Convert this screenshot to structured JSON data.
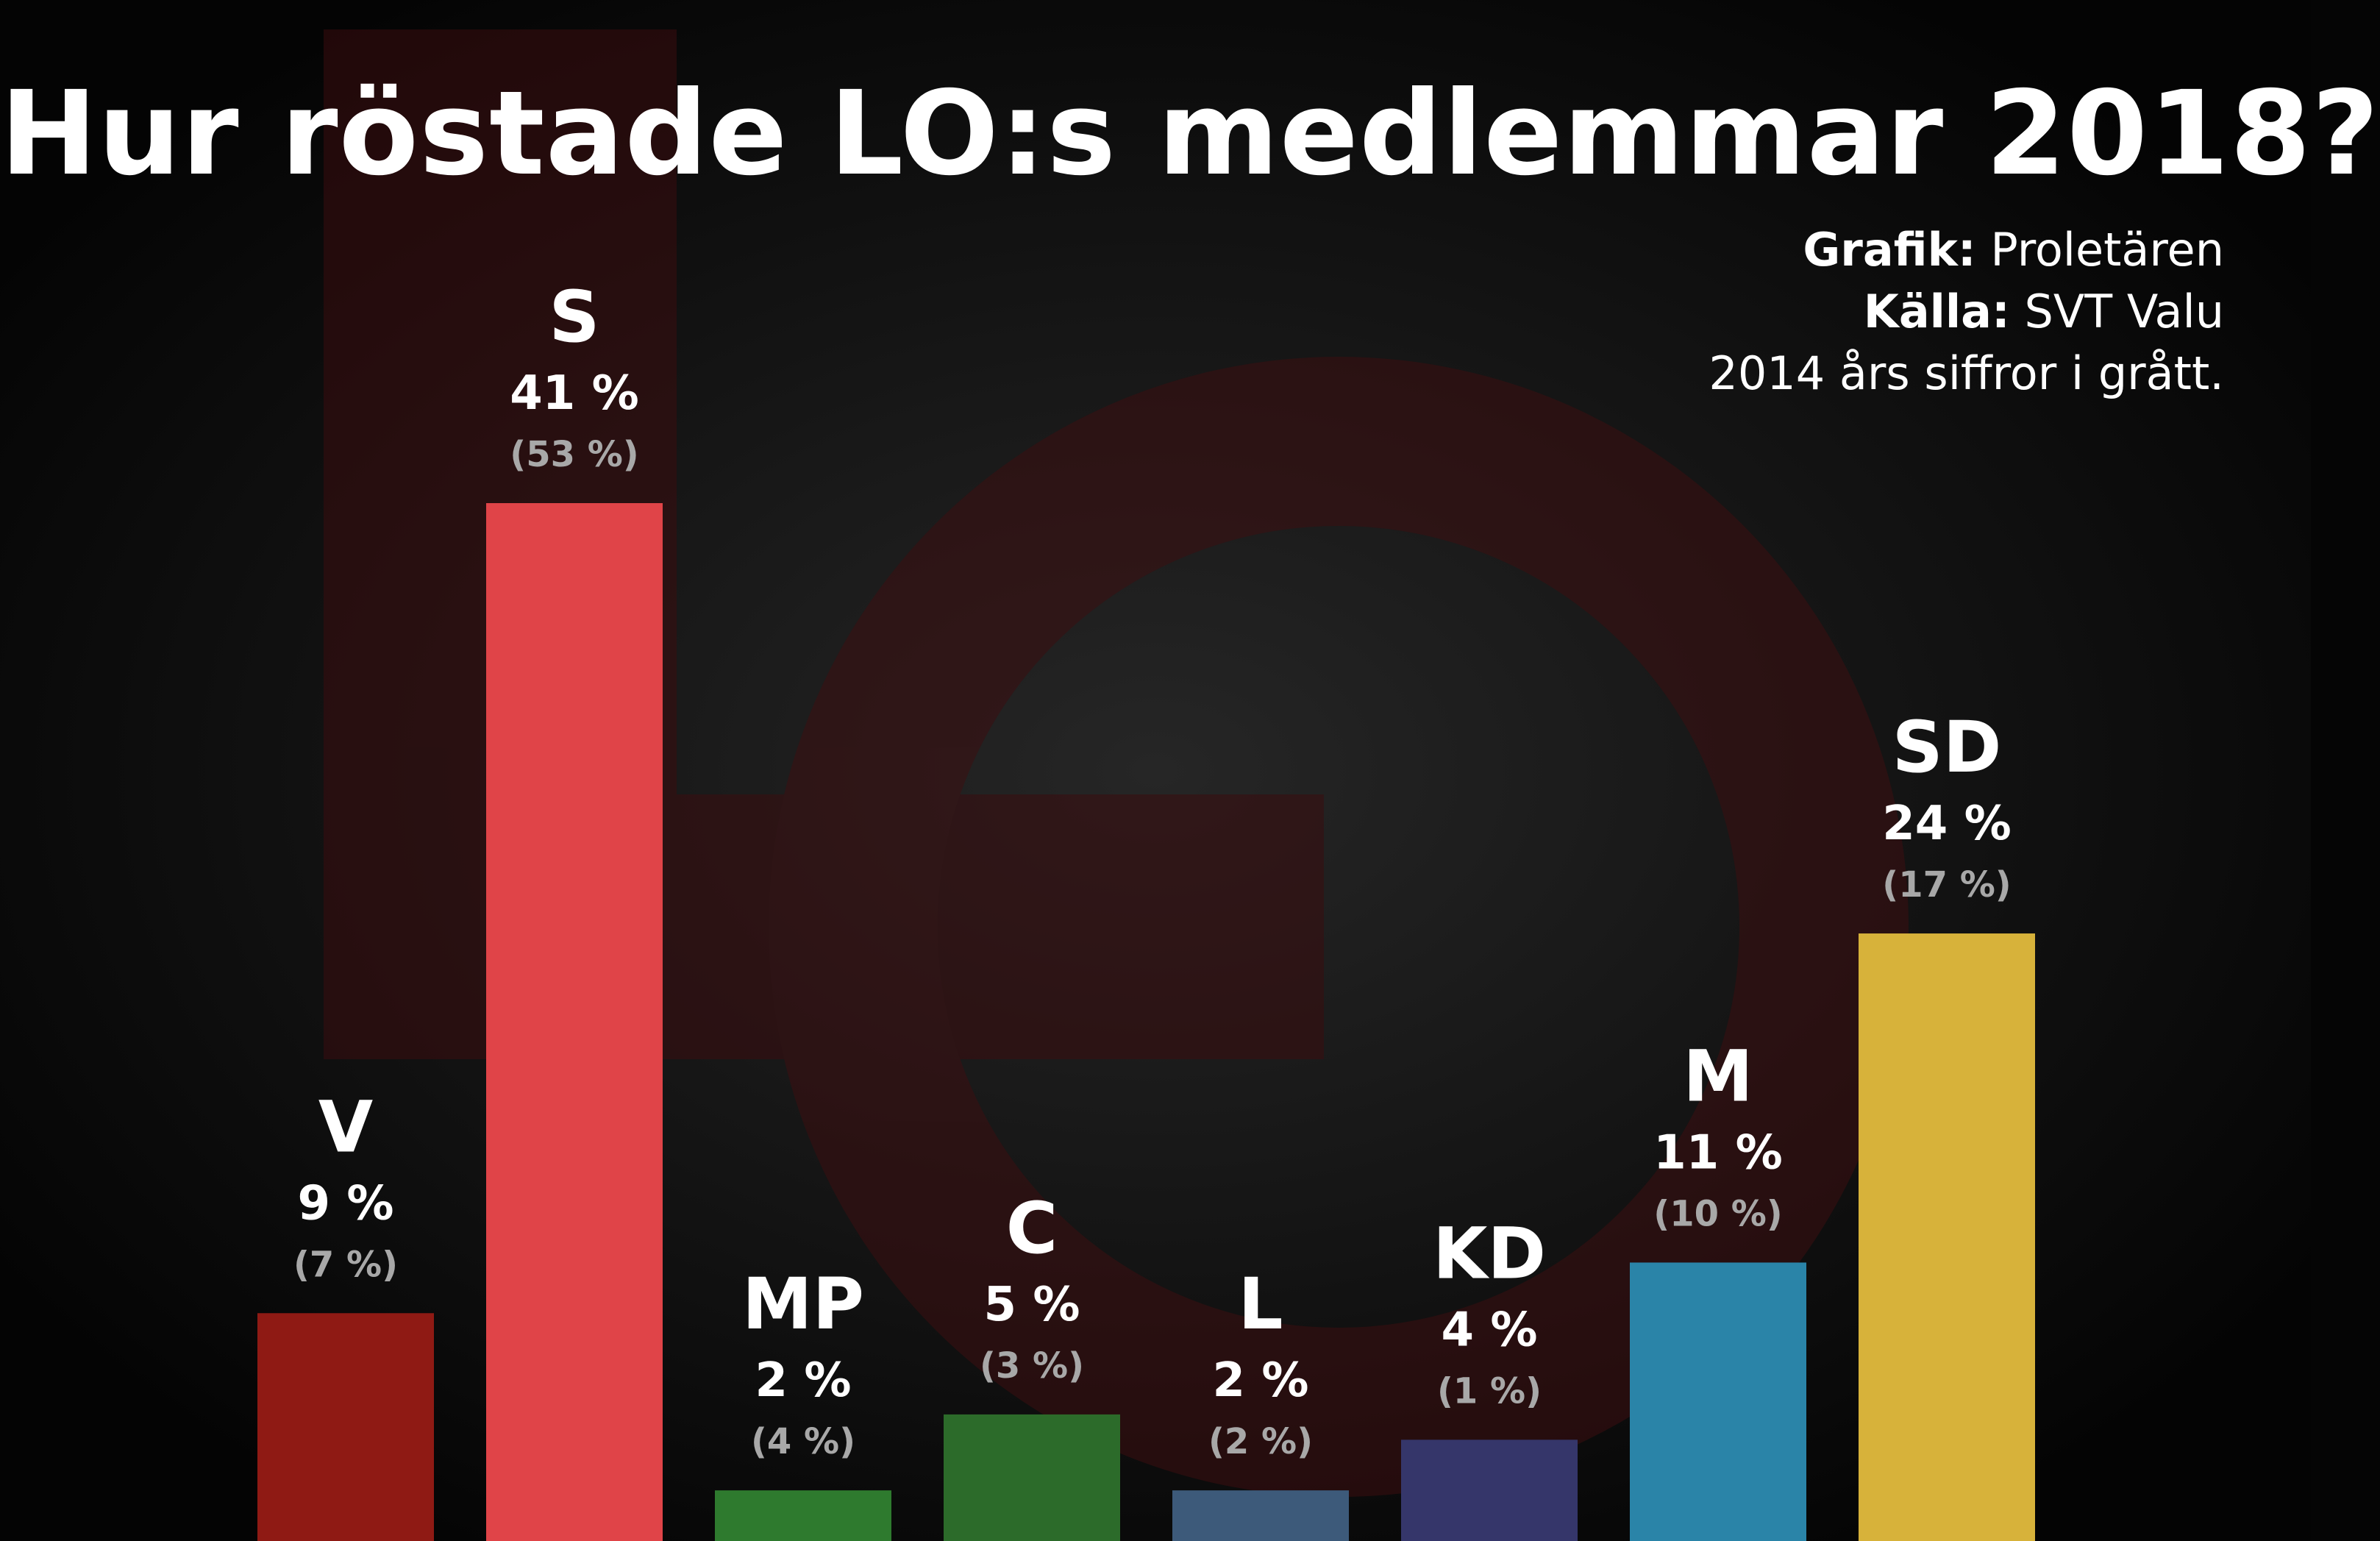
{
  "title": "Hur röstade LO:s medlemmar 2018?",
  "credits": {
    "grafik_label": "Grafik:",
    "grafik_value": "Proletären",
    "kalla_label": "Källa:",
    "kalla_value": "SVT Valu",
    "note": "2014 års siffror i grått."
  },
  "chart_data": {
    "type": "bar",
    "categories": [
      "V",
      "S",
      "MP",
      "C",
      "L",
      "KD",
      "M",
      "SD"
    ],
    "values": [
      9,
      41,
      2,
      5,
      2,
      4,
      11,
      24
    ],
    "value_labels": [
      "9 %",
      "41 %",
      "2 %",
      "5 %",
      "2 %",
      "4 %",
      "11 %",
      "24 %"
    ],
    "previous_values": [
      7,
      53,
      4,
      3,
      2,
      1,
      10,
      17
    ],
    "previous_labels": [
      "(7 %)",
      "(53 %)",
      "(4 %)",
      "(3 %)",
      "(2 %)",
      "(1 %)",
      "(10 %)",
      "(17 %)"
    ],
    "colors": [
      "#8f1a14",
      "#e04448",
      "#2e7a2e",
      "#2c6b2a",
      "#3d5a7a",
      "#35366a",
      "#2a84a8",
      "#d7b23a"
    ],
    "ylim": [
      0,
      41
    ]
  }
}
